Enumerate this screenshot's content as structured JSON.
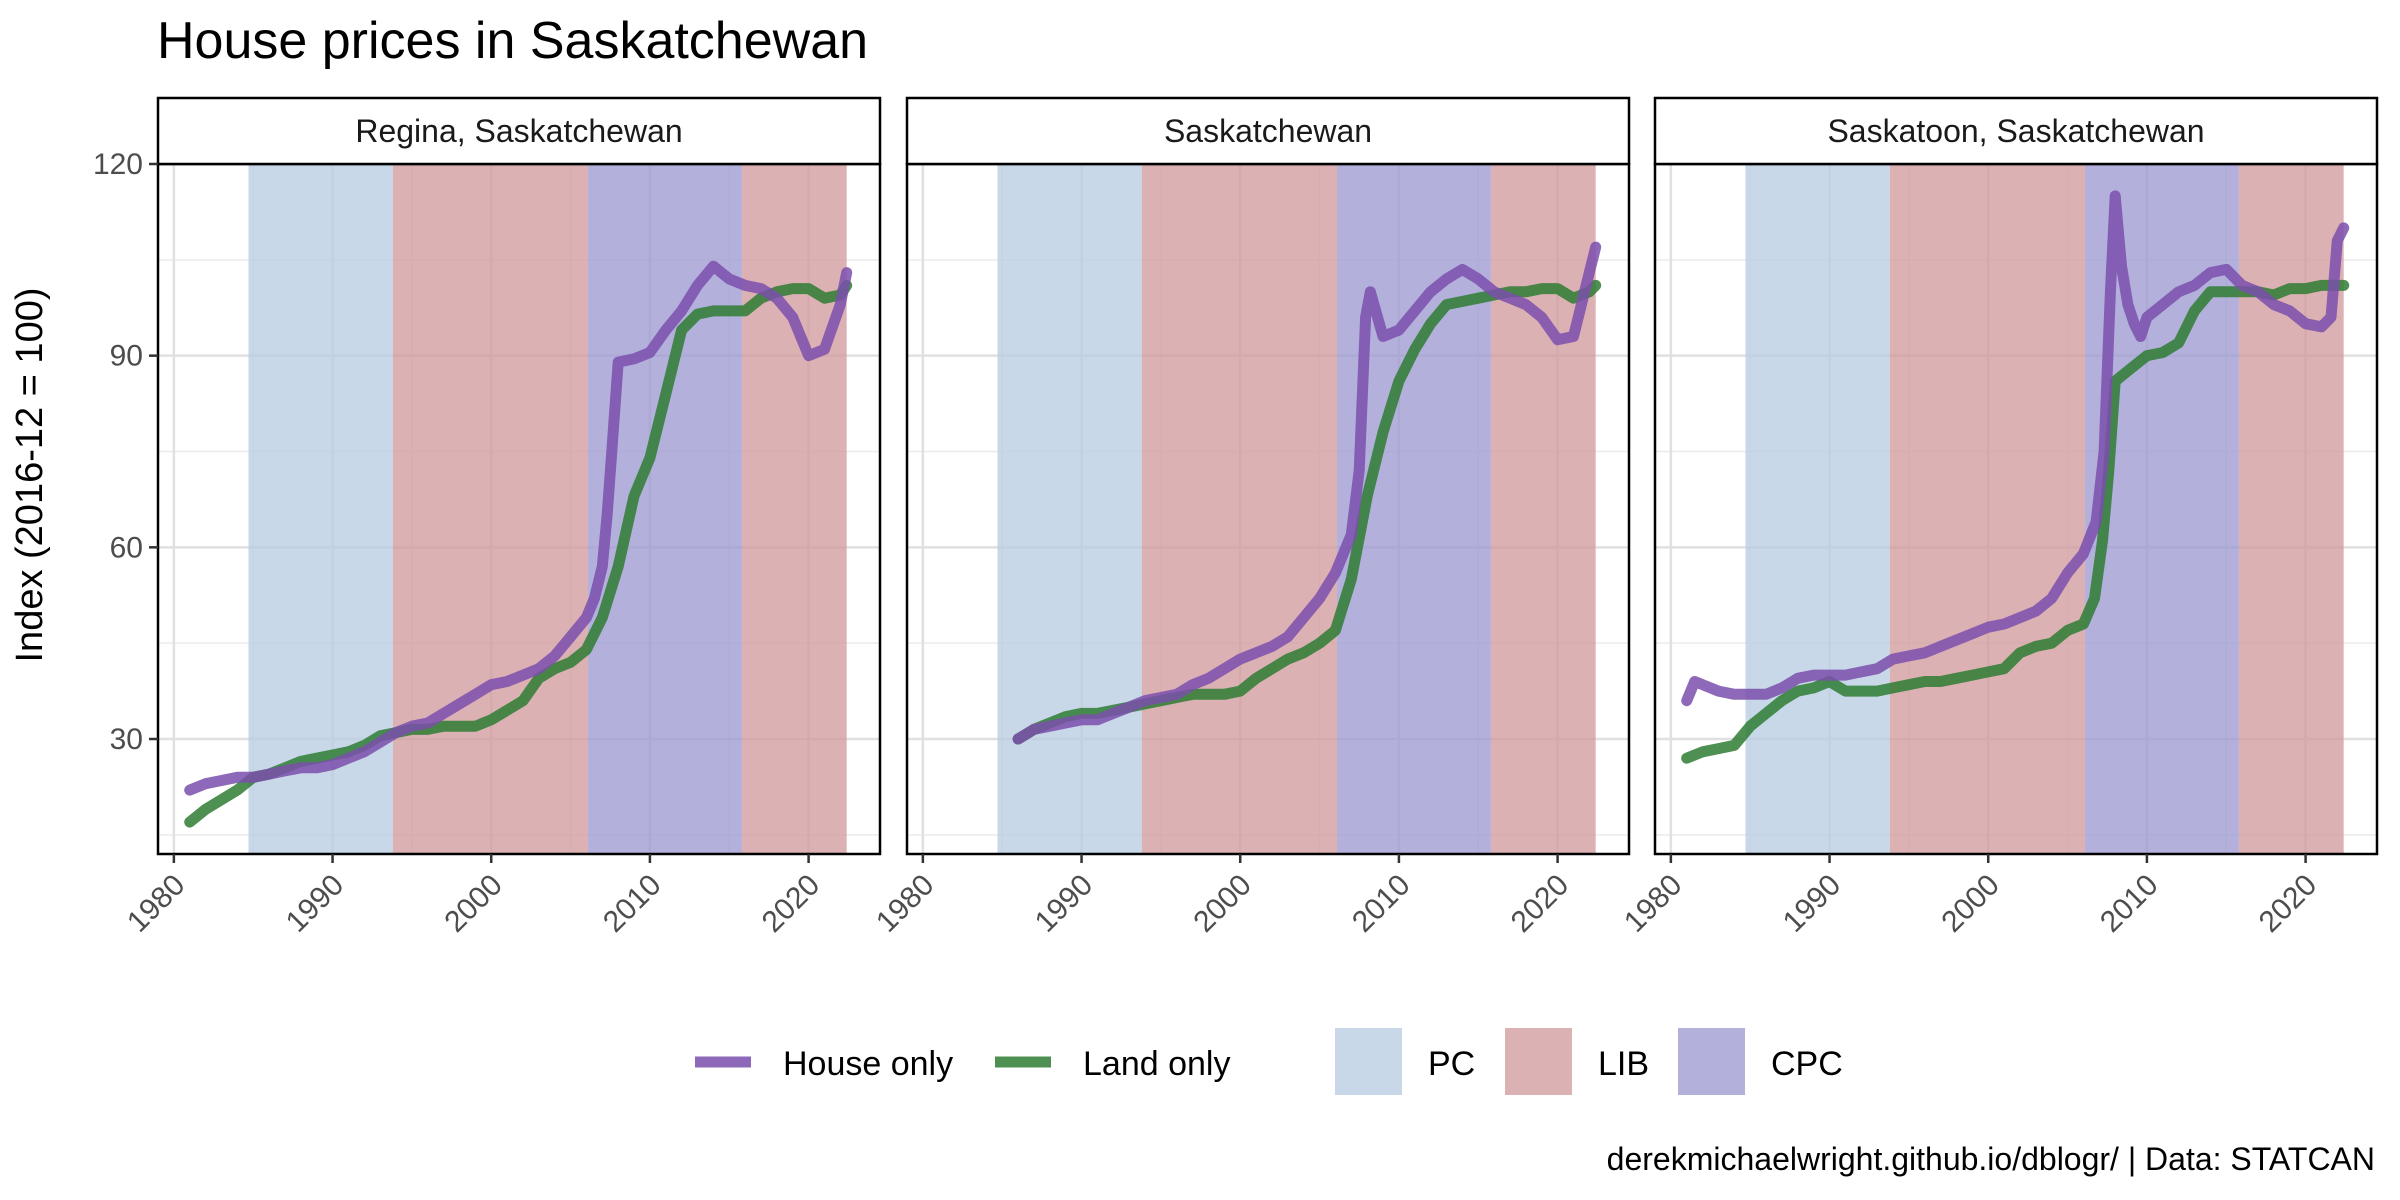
{
  "chart_data": {
    "type": "line",
    "title": "House prices in Saskatchewan",
    "ylabel": "Index (2016-12 = 100)",
    "caption": "derekmichaelwright.github.io/dblogr/ | Data: STATCAN",
    "xlim": [
      1979,
      2024.5
    ],
    "ylim": [
      12,
      120
    ],
    "x_ticks": [
      1980,
      1990,
      2000,
      2010,
      2020
    ],
    "y_ticks": [
      30,
      60,
      90,
      120
    ],
    "grid": true,
    "legend_position": "bottom",
    "series_legend": [
      {
        "name": "House only",
        "color": "#7b4fad"
      },
      {
        "name": "Land only",
        "color": "#2e7d32"
      }
    ],
    "periods": [
      {
        "party": "PC",
        "start": 1984.7,
        "end": 1993.8,
        "color": "#b8cde2"
      },
      {
        "party": "LIB",
        "start": 1993.8,
        "end": 2006.1,
        "color": "#d29b9e"
      },
      {
        "party": "CPC",
        "start": 2006.1,
        "end": 2015.8,
        "color": "#9e9bd2"
      },
      {
        "party": "LIB",
        "start": 2015.8,
        "end": 2022.4,
        "color": "#d29b9e"
      }
    ],
    "period_legend": [
      {
        "name": "PC",
        "color": "#b8cde2"
      },
      {
        "name": "LIB",
        "color": "#d29b9e"
      },
      {
        "name": "CPC",
        "color": "#9e9bd2"
      }
    ],
    "panels": [
      {
        "name": "Regina, Saskatchewan",
        "series": [
          {
            "name": "House only",
            "x": [
              1981,
              1982,
              1983,
              1984,
              1985,
              1986,
              1987,
              1988,
              1989,
              1990,
              1991,
              1992,
              1993,
              1994,
              1995,
              1996,
              1997,
              1998,
              1999,
              2000,
              2001,
              2002,
              2003,
              2004,
              2005,
              2006,
              2006.5,
              2007,
              2007.3,
              2007.6,
              2008,
              2009,
              2010,
              2011,
              2012,
              2013,
              2014,
              2015,
              2016,
              2017,
              2018,
              2019,
              2020,
              2021,
              2022,
              2022.4
            ],
            "y": [
              22,
              23,
              23.5,
              24,
              24,
              24.5,
              25,
              25.5,
              25.5,
              26,
              27,
              28,
              29.5,
              31,
              32,
              32.5,
              34,
              35.5,
              37,
              38.5,
              39,
              40,
              41,
              43,
              46,
              49,
              52,
              57,
              65,
              75,
              89,
              89.5,
              90.5,
              94,
              97,
              101,
              104,
              102,
              101,
              100.5,
              99,
              96,
              90,
              91,
              98,
              103
            ]
          },
          {
            "name": "Land only",
            "x": [
              1981,
              1982,
              1983,
              1984,
              1985,
              1986,
              1987,
              1988,
              1989,
              1990,
              1991,
              1992,
              1993,
              1994,
              1995,
              1996,
              1997,
              1998,
              1999,
              2000,
              2001,
              2002,
              2003,
              2004,
              2005,
              2006,
              2007,
              2008,
              2009,
              2010,
              2011,
              2012,
              2013,
              2014,
              2015,
              2016,
              2017,
              2018,
              2019,
              2020,
              2021,
              2022,
              2022.4
            ],
            "y": [
              17,
              19,
              20.5,
              22,
              24,
              24.5,
              25.5,
              26.5,
              27,
              27.5,
              28,
              29,
              30.5,
              31,
              31.5,
              31.5,
              32,
              32,
              32,
              33,
              34.5,
              36,
              39.5,
              41,
              42,
              44,
              49,
              57,
              68,
              74,
              84,
              94,
              96.5,
              97,
              97,
              97,
              99,
              100,
              100.5,
              100.5,
              99,
              99.5,
              101
            ]
          }
        ]
      },
      {
        "name": "Saskatchewan",
        "series": [
          {
            "name": "House only",
            "x": [
              1986,
              1987,
              1988,
              1989,
              1990,
              1991,
              1992,
              1993,
              1994,
              1995,
              1996,
              1997,
              1998,
              1999,
              2000,
              2001,
              2002,
              2003,
              2004,
              2005,
              2006,
              2007,
              2007.5,
              2007.9,
              2008.2,
              2009,
              2010,
              2011,
              2012,
              2013,
              2014,
              2015,
              2016,
              2017,
              2018,
              2019,
              2020,
              2021,
              2022,
              2022.4
            ],
            "y": [
              30,
              31.5,
              32,
              32.5,
              33,
              33,
              34,
              35,
              36,
              36.5,
              37,
              38.5,
              39.5,
              41,
              42.5,
              43.5,
              44.5,
              46,
              49,
              52,
              56,
              62,
              72,
              96,
              100,
              93,
              94,
              97,
              100,
              102,
              103.5,
              102,
              100,
              99,
              98,
              96,
              92.5,
              93,
              103,
              107
            ]
          },
          {
            "name": "Land only",
            "x": [
              1986,
              1987,
              1988,
              1989,
              1990,
              1991,
              1992,
              1993,
              1994,
              1995,
              1996,
              1997,
              1998,
              1999,
              2000,
              2001,
              2002,
              2003,
              2004,
              2005,
              2006,
              2007,
              2008,
              2009,
              2010,
              2011,
              2012,
              2013,
              2014,
              2015,
              2016,
              2017,
              2018,
              2019,
              2020,
              2021,
              2022,
              2022.4
            ],
            "y": [
              30,
              31.5,
              32.5,
              33.5,
              34,
              34,
              34.5,
              35,
              35.5,
              36,
              36.5,
              37,
              37,
              37,
              37.5,
              39.5,
              41,
              42.5,
              43.5,
              45,
              47,
              55,
              68,
              78,
              86,
              91,
              95,
              98,
              98.5,
              99,
              99.5,
              100,
              100,
              100.5,
              100.5,
              99,
              100,
              101
            ]
          }
        ]
      },
      {
        "name": "Saskatoon, Saskatchewan",
        "series": [
          {
            "name": "House only",
            "x": [
              1981,
              1981.5,
              1982,
              1983,
              1984,
              1985,
              1986,
              1987,
              1988,
              1989,
              1990,
              1991,
              1992,
              1993,
              1994,
              1995,
              1996,
              1997,
              1998,
              1999,
              2000,
              2001,
              2002,
              2003,
              2004,
              2005,
              2006,
              2006.8,
              2007.3,
              2007.7,
              2008,
              2008.4,
              2008.8,
              2009.2,
              2009.6,
              2010,
              2011,
              2012,
              2013,
              2014,
              2015,
              2016,
              2017,
              2018,
              2019,
              2020,
              2021,
              2021.6,
              2022,
              2022.4
            ],
            "y": [
              36,
              39,
              38.5,
              37.5,
              37,
              37,
              37,
              38,
              39.5,
              40,
              40,
              40,
              40.5,
              41,
              42.5,
              43,
              43.5,
              44.5,
              45.5,
              46.5,
              47.5,
              48,
              49,
              50,
              52,
              56,
              59,
              64,
              75,
              100,
              115,
              104,
              98,
              95,
              93,
              96,
              98,
              100,
              101,
              103,
              103.5,
              101,
              100,
              98,
              97,
              95,
              94.5,
              96,
              108,
              110
            ]
          },
          {
            "name": "Land only",
            "x": [
              1981,
              1982,
              1983,
              1984,
              1985,
              1986,
              1987,
              1988,
              1989,
              1990,
              1991,
              1992,
              1993,
              1994,
              1995,
              1996,
              1997,
              1998,
              1999,
              2000,
              2001,
              2002,
              2003,
              2004,
              2005,
              2006,
              2006.7,
              2007.2,
              2007.6,
              2008,
              2009,
              2010,
              2011,
              2012,
              2013,
              2014,
              2015,
              2016,
              2017,
              2018,
              2019,
              2020,
              2021,
              2022,
              2022.4
            ],
            "y": [
              27,
              28,
              28.5,
              29,
              32,
              34,
              36,
              37.5,
              38,
              39,
              37.5,
              37.5,
              37.5,
              38,
              38.5,
              39,
              39,
              39.5,
              40,
              40.5,
              41,
              43.5,
              44.5,
              45,
              47,
              48,
              52,
              61,
              72,
              86,
              88,
              90,
              90.5,
              92,
              97,
              100,
              100,
              100,
              100,
              99.5,
              100.5,
              100.5,
              101,
              101,
              101
            ]
          }
        ]
      }
    ]
  }
}
